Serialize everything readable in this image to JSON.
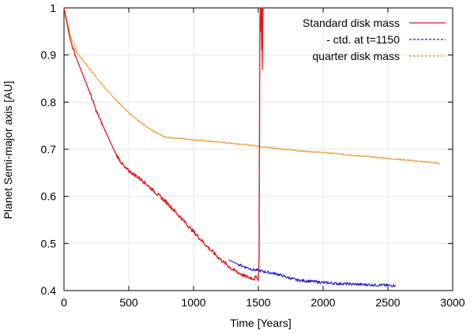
{
  "chart_data": {
    "type": "line",
    "title": "",
    "xlabel": "Time [Years]",
    "ylabel": "Planet Semi-major axis [AU]",
    "xlim": [
      0,
      3000
    ],
    "ylim": [
      0.4,
      1.0
    ],
    "grid": true,
    "legend_position": "top-right",
    "x_ticks": [
      0,
      500,
      1000,
      1500,
      2000,
      2500,
      3000
    ],
    "x_tick_labels": [
      "0",
      "500",
      "1000",
      "1500",
      "2000",
      "2500",
      "3000"
    ],
    "y_ticks": [
      0.4,
      0.5,
      0.6,
      0.7,
      0.8,
      0.9,
      1.0
    ],
    "y_tick_labels": [
      "0.4",
      "0.5",
      "0.6",
      "0.7",
      "0.8",
      "0.9",
      "1"
    ],
    "series": [
      {
        "name": "Standard disk mass",
        "color": "#e31a1c",
        "style": "solid",
        "noise": 0.004,
        "points": [
          [
            0,
            1.0
          ],
          [
            50,
            0.93
          ],
          [
            100,
            0.89
          ],
          [
            200,
            0.82
          ],
          [
            250,
            0.78
          ],
          [
            300,
            0.75
          ],
          [
            400,
            0.69
          ],
          [
            470,
            0.66
          ],
          [
            600,
            0.635
          ],
          [
            700,
            0.61
          ],
          [
            800,
            0.585
          ],
          [
            900,
            0.555
          ],
          [
            1000,
            0.525
          ],
          [
            1100,
            0.495
          ],
          [
            1200,
            0.468
          ],
          [
            1300,
            0.445
          ],
          [
            1400,
            0.43
          ],
          [
            1470,
            0.425
          ],
          [
            1490,
            0.43
          ],
          [
            1500,
            0.42
          ],
          [
            1506,
            0.47
          ],
          [
            1512,
            0.98
          ],
          [
            1516,
            1.0
          ],
          [
            1519,
            0.95
          ],
          [
            1522,
            1.0
          ],
          [
            1526,
            0.91
          ],
          [
            1528,
            1.0
          ],
          [
            1531,
            0.87
          ],
          [
            1534,
            0.97
          ],
          [
            1537,
            1.0
          ]
        ]
      },
      {
        "name": "- ctd. at t=1150",
        "color": "#1f1fcc",
        "style": "dashed",
        "noise": 0.003,
        "points": [
          [
            1270,
            0.465
          ],
          [
            1350,
            0.455
          ],
          [
            1450,
            0.445
          ],
          [
            1550,
            0.44
          ],
          [
            1650,
            0.435
          ],
          [
            1700,
            0.43
          ],
          [
            1800,
            0.422
          ],
          [
            1900,
            0.42
          ],
          [
            2000,
            0.417
          ],
          [
            2100,
            0.415
          ],
          [
            2200,
            0.414
          ],
          [
            2300,
            0.413
          ],
          [
            2400,
            0.412
          ],
          [
            2500,
            0.411
          ],
          [
            2560,
            0.411
          ]
        ]
      },
      {
        "name": "quarter disk mass",
        "color": "#f0952a",
        "style": "dashed",
        "noise": 0.0012,
        "points": [
          [
            0,
            1.0
          ],
          [
            50,
            0.94
          ],
          [
            100,
            0.905
          ],
          [
            200,
            0.87
          ],
          [
            300,
            0.835
          ],
          [
            400,
            0.805
          ],
          [
            500,
            0.778
          ],
          [
            600,
            0.755
          ],
          [
            700,
            0.737
          ],
          [
            780,
            0.725
          ],
          [
            900,
            0.723
          ],
          [
            1000,
            0.72
          ],
          [
            1200,
            0.715
          ],
          [
            1400,
            0.71
          ],
          [
            1600,
            0.703
          ],
          [
            1800,
            0.697
          ],
          [
            2000,
            0.693
          ],
          [
            2200,
            0.688
          ],
          [
            2400,
            0.683
          ],
          [
            2600,
            0.678
          ],
          [
            2800,
            0.673
          ],
          [
            2900,
            0.67
          ]
        ]
      }
    ]
  }
}
